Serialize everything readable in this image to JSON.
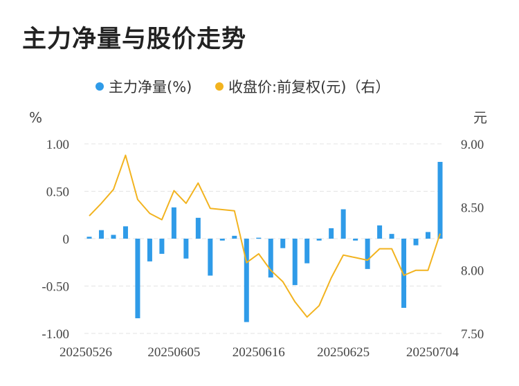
{
  "title": "主力净量与股价走势",
  "colors": {
    "bar": "#2f9be8",
    "line": "#f2b31f",
    "grid": "#e3e3e3"
  },
  "chart_data": {
    "type": "bar+line",
    "legend": [
      {
        "name": "主力净量(%)",
        "type": "bar",
        "color": "#2f9be8"
      },
      {
        "name": "收盘价:前复权(元)（右）",
        "type": "line",
        "color": "#f2b31f"
      }
    ],
    "legend_position": "top-center",
    "left_unit": "%",
    "right_unit": "元",
    "left_ticks": [
      "1.00",
      "0.50",
      "0",
      "-0.50",
      "-1.00"
    ],
    "right_ticks": [
      "9.00",
      "8.50",
      "8.00",
      "7.50"
    ],
    "ylim_left": [
      -1.0,
      1.0
    ],
    "ylim_right": [
      7.5,
      9.0
    ],
    "x_tick_labels": [
      "20250526",
      "20250605",
      "20250616",
      "20250625",
      "20250704"
    ],
    "x_tick_indices": [
      0,
      7,
      14,
      21,
      28
    ],
    "grid": true,
    "series": [
      {
        "name": "主力净量(%)",
        "axis": "left",
        "values": [
          0.02,
          0.09,
          0.04,
          0.13,
          -0.84,
          -0.24,
          -0.16,
          0.33,
          -0.21,
          0.22,
          -0.39,
          -0.02,
          0.03,
          -0.88,
          0.01,
          -0.41,
          -0.1,
          -0.49,
          -0.26,
          -0.02,
          0.11,
          0.31,
          -0.02,
          -0.32,
          0.14,
          0.05,
          -0.73,
          -0.07,
          0.07,
          0.81
        ]
      },
      {
        "name": "收盘价:前复权(元)",
        "axis": "right",
        "values": [
          8.43,
          8.53,
          8.64,
          8.91,
          8.56,
          8.45,
          8.4,
          8.63,
          8.53,
          8.69,
          8.49,
          8.48,
          8.47,
          8.06,
          8.13,
          8.0,
          7.91,
          7.75,
          7.63,
          7.72,
          7.94,
          8.12,
          8.1,
          8.08,
          8.17,
          8.17,
          7.96,
          8.0,
          8.0,
          8.29
        ]
      }
    ]
  }
}
